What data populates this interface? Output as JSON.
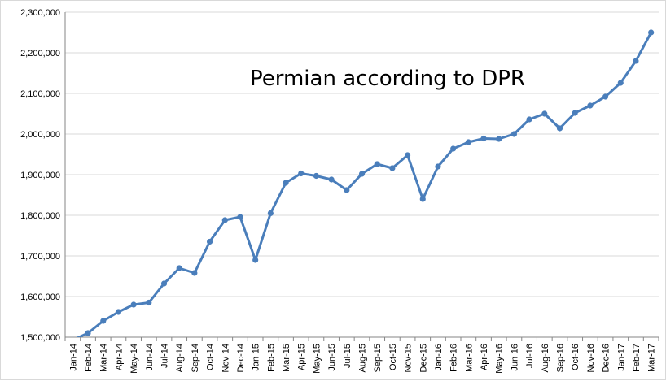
{
  "chart_data": {
    "type": "line",
    "title": "Permian according to DPR",
    "xlabel": "",
    "ylabel": "",
    "ylim": [
      1500000,
      2300000
    ],
    "yticks": [
      1500000,
      1600000,
      1700000,
      1800000,
      1900000,
      2000000,
      2100000,
      2200000,
      2300000
    ],
    "ytick_labels": [
      "1,500,000",
      "1,600,000",
      "1,700,000",
      "1,800,000",
      "1,900,000",
      "2,000,000",
      "2,100,000",
      "2,200,000",
      "2,300,000"
    ],
    "grid": true,
    "legend": "none",
    "categories": [
      "Jan-14",
      "Feb-14",
      "Mar-14",
      "Apr-14",
      "May-14",
      "Jun-14",
      "Jul-14",
      "Aug-14",
      "Sep-14",
      "Oct-14",
      "Nov-14",
      "Dec-14",
      "Jan-15",
      "Feb-15",
      "Mar-15",
      "Apr-15",
      "May-15",
      "Jun-15",
      "Jul-15",
      "Aug-15",
      "Sep-15",
      "Oct-15",
      "Nov-15",
      "Dec-15",
      "Jan-16",
      "Feb-16",
      "Mar-16",
      "Apr-16",
      "May-16",
      "Jun-16",
      "Jul-16",
      "Aug-16",
      "Sep-16",
      "Oct-16",
      "Nov-16",
      "Dec-16",
      "Jan-17",
      "Feb-17",
      "Mar-17"
    ],
    "series": [
      {
        "color": "#4a7ebb",
        "values": [
          1493000,
          1510000,
          1540000,
          1562000,
          1580000,
          1585000,
          1632000,
          1670000,
          1658000,
          1735000,
          1788000,
          1796000,
          1690000,
          1805000,
          1880000,
          1903000,
          1897000,
          1888000,
          1862000,
          1902000,
          1926000,
          1916000,
          1948000,
          1840000,
          1920000,
          1964000,
          1980000,
          1989000,
          1988000,
          2000000,
          2036000,
          2050000,
          2014000,
          2052000,
          2070000,
          2092000,
          2126000,
          2180000,
          2250000
        ]
      }
    ]
  }
}
